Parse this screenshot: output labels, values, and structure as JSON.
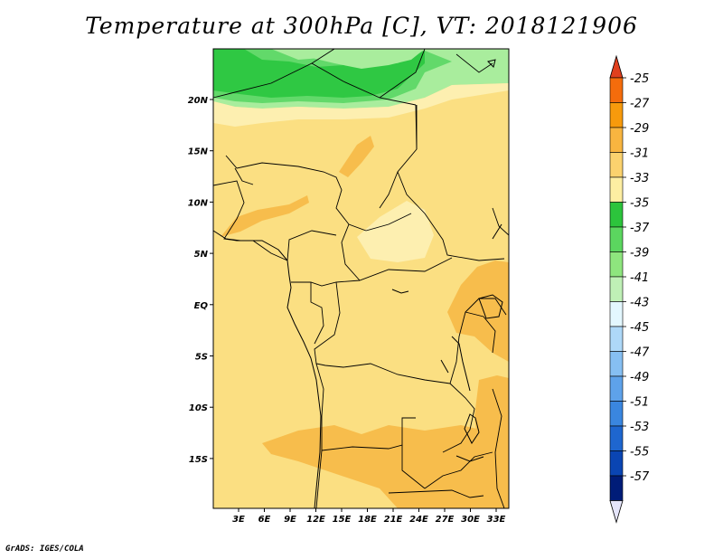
{
  "title": "Temperature at 300hPa [C], VT: 2018121906",
  "credit": "GrADS: IGES/COLA",
  "map": {
    "lat_ticks": [
      "20N",
      "15N",
      "10N",
      "5N",
      "EQ",
      "5S",
      "10S",
      "15S"
    ],
    "lon_ticks": [
      "3E",
      "6E",
      "9E",
      "12E",
      "15E",
      "18E",
      "21E",
      "24E",
      "27E",
      "30E",
      "33E"
    ]
  },
  "colorbar": {
    "labels": [
      "-25",
      "-27",
      "-29",
      "-31",
      "-33",
      "-35",
      "-37",
      "-39",
      "-41",
      "-43",
      "-45",
      "-47",
      "-49",
      "-51",
      "-53",
      "-55",
      "-57"
    ],
    "colors": [
      "#f04a1e",
      "#f46c0c",
      "#f79a0c",
      "#f8b540",
      "#fbd26e",
      "#fdeea2",
      "#2cc43c",
      "#5bd65f",
      "#8ee57e",
      "#bff0b6",
      "#e3f7ff",
      "#aed8f8",
      "#86bff2",
      "#5ea2ea",
      "#3a86df",
      "#1e66cf",
      "#0a45b3",
      "#001c78"
    ],
    "top_color": "#e0401e",
    "bottom_color": "#e5e5fb"
  },
  "fill_colors": {
    "base": "#fbdf82",
    "light": "#fdefb0",
    "warm": "#f7bd4c",
    "green_dark": "#2fc843",
    "green_mid": "#62d96a",
    "green_light": "#a9ed9d"
  }
}
